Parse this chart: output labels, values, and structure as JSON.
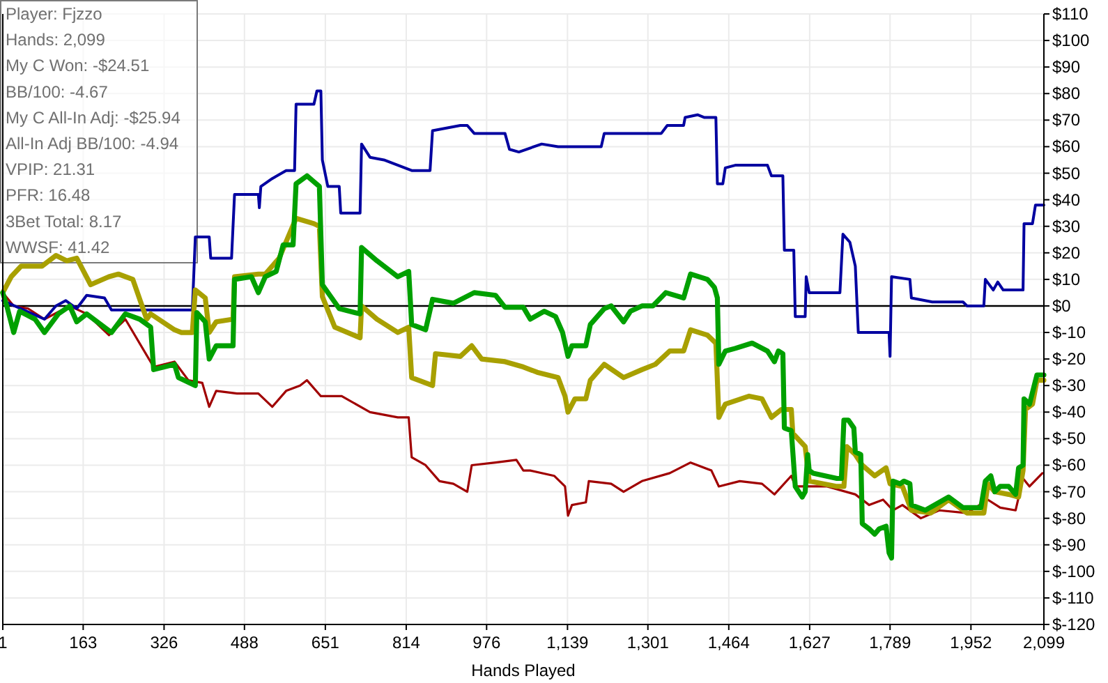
{
  "chart_data": {
    "type": "line",
    "xlabel": "Hands Played",
    "annotations": [
      "Player: Fjzzo",
      "Hands: 2,099",
      "My C Won: -$24.51",
      "BB/100: -4.67",
      "My C All-In Adj: -$25.94",
      "All-In Adj BB/100: -4.94",
      "VPIP: 21.31",
      "PFR: 16.48",
      "3Bet Total: 8.17",
      "WWSF: 41.42"
    ],
    "xlim": [
      1,
      2099
    ],
    "xticks": [
      1,
      163,
      326,
      488,
      651,
      814,
      976,
      {
        "value": 1139,
        "label": "1,139"
      },
      {
        "value": 1301,
        "label": "1,301"
      },
      {
        "value": 1464,
        "label": "1,464"
      },
      {
        "value": 1627,
        "label": "1,627"
      },
      {
        "value": 1789,
        "label": "1,789"
      },
      {
        "value": 1952,
        "label": "1,952"
      },
      {
        "value": 2099,
        "label": "2,099"
      }
    ],
    "ylim": [
      -120,
      110
    ],
    "yticks": [
      {
        "value": 110,
        "label": "$110"
      },
      {
        "value": 100,
        "label": "$100"
      },
      {
        "value": 90,
        "label": "$90"
      },
      {
        "value": 80,
        "label": "$80"
      },
      {
        "value": 70,
        "label": "$70"
      },
      {
        "value": 60,
        "label": "$60"
      },
      {
        "value": 50,
        "label": "$50"
      },
      {
        "value": 40,
        "label": "$40"
      },
      {
        "value": 30,
        "label": "$30"
      },
      {
        "value": 20,
        "label": "$20"
      },
      {
        "value": 10,
        "label": "$10"
      },
      {
        "value": 0,
        "label": "$0"
      },
      {
        "value": -10,
        "label": "$-10"
      },
      {
        "value": -20,
        "label": "$-20"
      },
      {
        "value": -30,
        "label": "$-30"
      },
      {
        "value": -40,
        "label": "$-40"
      },
      {
        "value": -50,
        "label": "$-50"
      },
      {
        "value": -60,
        "label": "$-60"
      },
      {
        "value": -70,
        "label": "$-70"
      },
      {
        "value": -80,
        "label": "$-80"
      },
      {
        "value": -90,
        "label": "$-90"
      },
      {
        "value": -100,
        "label": "$-100"
      },
      {
        "value": -110,
        "label": "$-110"
      },
      {
        "value": -120,
        "label": "$-120"
      }
    ],
    "grid": true,
    "marker": "none",
    "line_style": "solid",
    "ref_lines": [
      {
        "axis": "y",
        "value": 0,
        "color": "#000000"
      }
    ],
    "series": [
      {
        "color": "#a00000",
        "x": [
          1,
          23,
          52,
          85,
          136,
          170,
          215,
          248,
          305,
          347,
          375,
          403,
          417,
          431,
          473,
          516,
          544,
          572,
          600,
          614,
          642,
          684,
          741,
          797,
          819,
          825,
          853,
          881,
          909,
          937,
          946,
          994,
          1036,
          1050,
          1064,
          1112,
          1134,
          1140,
          1148,
          1176,
          1182,
          1227,
          1252,
          1289,
          1345,
          1387,
          1429,
          1444,
          1486,
          1531,
          1556,
          1590,
          1598,
          1662,
          1719,
          1747,
          1775,
          1795,
          1814,
          1851,
          1888,
          1944,
          1986,
          2011,
          2042,
          2057,
          2070,
          2096
        ],
        "values": [
          5,
          0,
          -1,
          -5,
          0,
          -3,
          -11,
          -5,
          -23,
          -21,
          -28,
          -29,
          -38,
          -32,
          -33,
          -33,
          -38,
          -32,
          -30,
          -28,
          -34,
          -34,
          -40,
          -42,
          -42,
          -57,
          -60,
          -66,
          -67,
          -70,
          -60,
          -59,
          -58,
          -62,
          -62,
          -64,
          -68,
          -79,
          -75,
          -74,
          -66,
          -67,
          -70,
          -66,
          -63,
          -59,
          -62,
          -68,
          -66,
          -67,
          -71,
          -64,
          -68,
          -68,
          -71,
          -75,
          -73,
          -77,
          -75,
          -80,
          -77,
          -78,
          -73,
          -76,
          -77,
          -65,
          -68,
          -63
        ]
      },
      {
        "color": "#0000a0",
        "x": [
          1,
          85,
          108,
          128,
          150,
          170,
          206,
          220,
          383,
          389,
          417,
          420,
          462,
          468,
          516,
          518,
          521,
          544,
          572,
          589,
          592,
          628,
          634,
          642,
          645,
          656,
          679,
          682,
          721,
          724,
          741,
          769,
          825,
          862,
          867,
          923,
          937,
          951,
          1013,
          1022,
          1041,
          1087,
          1120,
          1207,
          1213,
          1328,
          1340,
          1373,
          1376,
          1401,
          1415,
          1438,
          1441,
          1452,
          1457,
          1477,
          1542,
          1550,
          1573,
          1576,
          1595,
          1598,
          1618,
          1620,
          1626,
          1688,
          1694,
          1708,
          1719,
          1725,
          1787,
          1789,
          1792,
          1829,
          1832,
          1874,
          1936,
          1944,
          1978,
          1981,
          1997,
          2006,
          2017,
          2057,
          2059,
          2076,
          2082,
          2099
        ],
        "values": [
          2,
          -5,
          0,
          2,
          -1,
          4,
          3,
          -1.5,
          -1.5,
          26,
          26,
          18,
          18,
          42,
          42,
          37,
          45,
          48,
          51,
          51,
          76,
          76,
          81,
          81,
          55,
          45,
          45,
          35,
          35,
          61,
          56,
          55,
          51,
          51,
          66,
          68,
          68,
          65,
          65,
          59,
          58,
          61,
          60,
          60,
          65,
          65,
          68,
          68,
          71,
          72,
          71,
          71,
          46,
          46,
          52,
          53,
          53,
          49,
          49,
          21,
          21,
          -4,
          -4,
          11,
          5,
          5,
          27,
          24,
          15,
          -10,
          -10,
          -19,
          11,
          10,
          3,
          1.5,
          1.5,
          0,
          0,
          10,
          6,
          9,
          6,
          6,
          31,
          31,
          38,
          38
        ]
      },
      {
        "color": "#a8a000",
        "x": [
          1,
          18,
          38,
          80,
          108,
          130,
          150,
          178,
          215,
          234,
          263,
          291,
          299,
          347,
          361,
          383,
          389,
          409,
          417,
          431,
          465,
          468,
          516,
          530,
          558,
          592,
          628,
          639,
          645,
          670,
          721,
          724,
          755,
          797,
          819,
          825,
          867,
          873,
          923,
          946,
          966,
          1013,
          1050,
          1078,
          1120,
          1134,
          1140,
          1154,
          1176,
          1185,
          1213,
          1252,
          1289,
          1316,
          1345,
          1373,
          1387,
          1421,
          1438,
          1444,
          1457,
          1505,
          1531,
          1550,
          1570,
          1590,
          1593,
          1618,
          1626,
          1682,
          1696,
          1702,
          1719,
          1733,
          1758,
          1781,
          1789,
          1814,
          1832,
          1871,
          1907,
          1944,
          1978,
          1986,
          2000,
          2028,
          2048,
          2057,
          2062,
          2076,
          2085,
          2099
        ],
        "values": [
          5,
          11,
          15,
          15,
          19,
          17,
          18,
          8,
          11,
          12,
          10,
          -5,
          -3,
          -9,
          -10,
          -10,
          6,
          3,
          -10,
          -6,
          -5,
          11,
          12,
          12,
          18,
          33,
          31,
          30,
          3.5,
          -8,
          -12,
          0,
          -5,
          -10,
          -8,
          -27,
          -30,
          -18,
          -19,
          -15,
          -20,
          -21,
          -23,
          -25,
          -27,
          -34,
          -40,
          -35,
          -35,
          -28,
          -22,
          -27,
          -24,
          -22,
          -17,
          -17,
          -9,
          -11,
          -14,
          -42,
          -37,
          -34,
          -35,
          -42,
          -39,
          -39,
          -48,
          -53,
          -66,
          -68,
          -68,
          -53,
          -56,
          -60,
          -64,
          -61,
          -67,
          -68,
          -77,
          -78,
          -73,
          -78,
          -78,
          -67,
          -70,
          -71,
          -72,
          -62,
          -39,
          -37,
          -28,
          -28
        ]
      },
      {
        "color": "#00a000",
        "x": [
          1,
          9,
          23,
          35,
          66,
          85,
          113,
          136,
          150,
          170,
          220,
          248,
          277,
          299,
          305,
          347,
          355,
          389,
          392,
          409,
          417,
          431,
          445,
          465,
          468,
          502,
          516,
          530,
          552,
          566,
          586,
          592,
          614,
          639,
          645,
          679,
          721,
          724,
          755,
          797,
          819,
          825,
          853,
          867,
          909,
          951,
          994,
          1013,
          1050,
          1064,
          1092,
          1115,
          1129,
          1140,
          1148,
          1176,
          1185,
          1213,
          1227,
          1252,
          1266,
          1289,
          1311,
          1337,
          1373,
          1387,
          1421,
          1435,
          1441,
          1444,
          1457,
          1477,
          1511,
          1542,
          1556,
          1564,
          1573,
          1576,
          1590,
          1598,
          1612,
          1618,
          1623,
          1626,
          1634,
          1682,
          1691,
          1696,
          1705,
          1716,
          1719,
          1730,
          1733,
          1747,
          1758,
          1767,
          1781,
          1787,
          1792,
          1795,
          1809,
          1817,
          1829,
          1832,
          1860,
          1907,
          1936,
          1972,
          1981,
          1992,
          2000,
          2011,
          2028,
          2042,
          2048,
          2057,
          2059,
          2070,
          2085,
          2099
        ],
        "values": [
          5,
          0,
          -10,
          -2,
          -5,
          -10,
          -3,
          0,
          -6,
          -3,
          -10,
          -3,
          -5,
          -8,
          -24,
          -22,
          -27,
          -30,
          -2.5,
          -6,
          -20,
          -15,
          -15,
          -15,
          10,
          11,
          5,
          11,
          13,
          23,
          23,
          46,
          49,
          45,
          8,
          -1,
          -3,
          22,
          17,
          11,
          13,
          -7,
          -9,
          2.5,
          1,
          5,
          4,
          -0.5,
          -0.5,
          -5,
          -2,
          -4,
          -10,
          -19,
          -15,
          -15,
          -7,
          -1,
          0,
          -6,
          -2,
          0,
          0,
          5,
          3,
          12,
          10,
          7,
          3,
          -22,
          -17,
          -16,
          -14,
          -17,
          -21,
          -17,
          -18,
          -46,
          -47,
          -68,
          -72,
          -70,
          -56,
          -62,
          -63,
          -65,
          -65,
          -43,
          -43,
          -46,
          -55,
          -56,
          -82,
          -84,
          -86,
          -84,
          -83,
          -93,
          -95,
          -66,
          -67,
          -66,
          -67,
          -75,
          -77,
          -72,
          -76,
          -76,
          -66,
          -64,
          -70,
          -68,
          -68,
          -71,
          -61,
          -60,
          -35,
          -37,
          -26,
          -26
        ]
      }
    ]
  }
}
